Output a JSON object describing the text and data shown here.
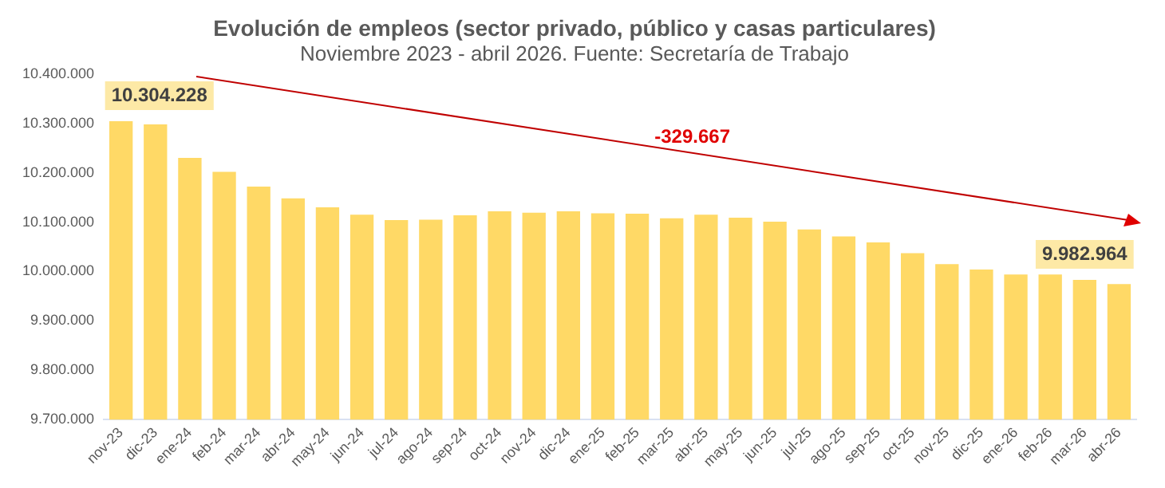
{
  "chart_data": {
    "type": "bar",
    "title": "Evolución de empleos (sector privado, público y casas particulares)",
    "subtitle": "Noviembre 2023 - abril 2026. Fuente: Secretaría de Trabajo",
    "categories": [
      "nov-23",
      "dic-23",
      "ene-24",
      "feb-24",
      "mar-24",
      "abr-24",
      "may-24",
      "jun-24",
      "jul-24",
      "ago-24",
      "sep-24",
      "oct-24",
      "nov-24",
      "dic-24",
      "ene-25",
      "feb-25",
      "mar-25",
      "abr-25",
      "may-25",
      "jun-25",
      "jul-25",
      "ago-25",
      "sep-25",
      "oct-25",
      "nov-25",
      "dic-25",
      "ene-26",
      "feb-26",
      "mar-26",
      "abr-26"
    ],
    "values": [
      10304228,
      10298000,
      10230000,
      10202000,
      10172000,
      10148000,
      10130000,
      10115000,
      10104000,
      10105000,
      10114000,
      10122000,
      10119000,
      10122000,
      10118000,
      10117000,
      10108000,
      10115000,
      10109000,
      10101000,
      10085000,
      10071000,
      10059000,
      10037000,
      10015000,
      10004000,
      9994000,
      9994000,
      9982964,
      9974561
    ],
    "color": "#ffd966",
    "ylim": [
      9700000,
      10400000
    ],
    "yticks": [
      {
        "value": 9700000,
        "label": "9.700.000"
      },
      {
        "value": 9800000,
        "label": "9.800.000"
      },
      {
        "value": 9900000,
        "label": "9.900.000"
      },
      {
        "value": 10000000,
        "label": "10.000.000"
      },
      {
        "value": 10100000,
        "label": "10.100.000"
      },
      {
        "value": 10200000,
        "label": "10.200.000"
      },
      {
        "value": 10300000,
        "label": "10.300.000"
      },
      {
        "value": 10400000,
        "label": "10.400.000"
      }
    ],
    "grid": false,
    "legend": false,
    "annotations": [
      {
        "text": "10.304.228",
        "x": "nov-23",
        "y": 10304228
      },
      {
        "text": "9.982.964",
        "x": "mar-26",
        "y": 9982964
      },
      "-329.667"
    ]
  }
}
